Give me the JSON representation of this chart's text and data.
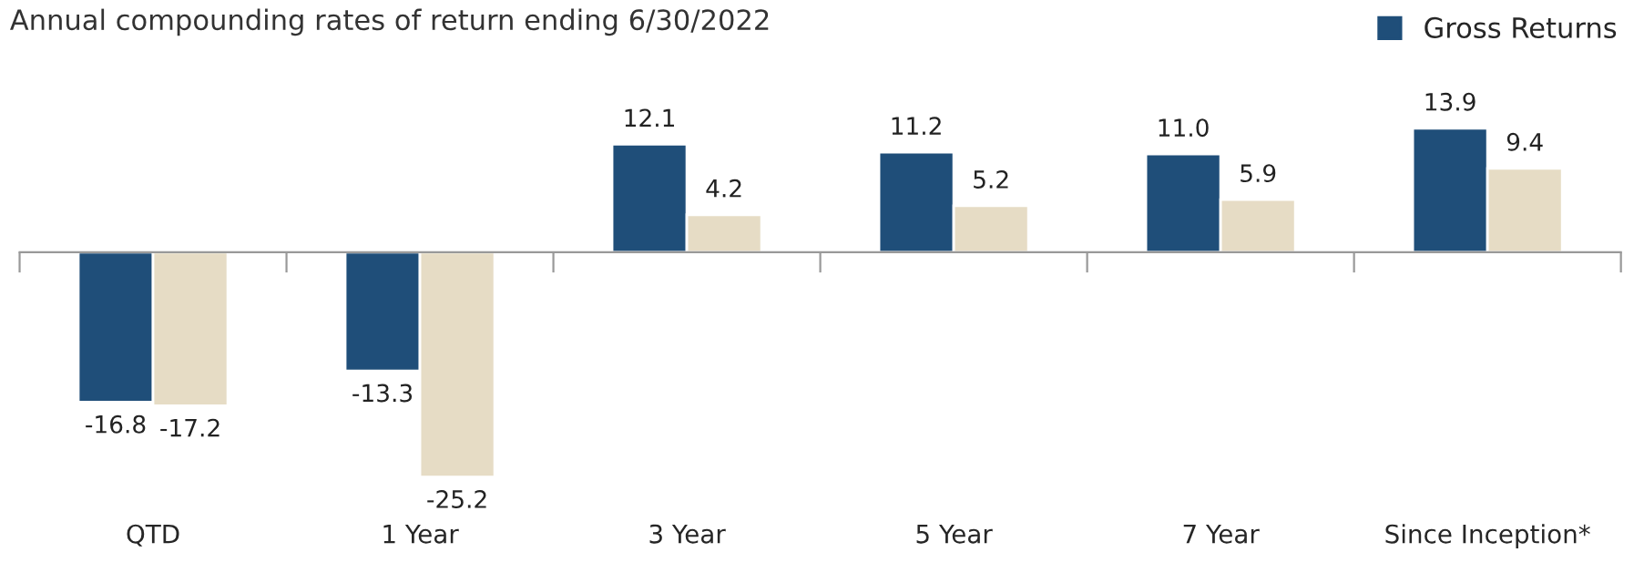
{
  "chart_data": {
    "type": "bar",
    "title": "Annual compounding rates of return ending 6/30/2022",
    "categories": [
      "QTD",
      "1 Year",
      "3 Year",
      "5 Year",
      "7 Year",
      "Since Inception*"
    ],
    "series": [
      {
        "name": "Gross Returns",
        "color": "#1f4e79",
        "values": [
          -16.8,
          -13.3,
          12.1,
          11.2,
          11.0,
          13.9
        ],
        "value_labels": [
          "-16.8",
          "-13.3",
          "12.1",
          "11.2",
          "11.0",
          "13.9"
        ]
      },
      {
        "color": "#e6dcc5",
        "values": [
          -17.2,
          -25.2,
          4.2,
          5.2,
          5.9,
          9.4
        ],
        "value_labels": [
          "-17.2",
          "-25.2",
          "4.2",
          "5.2",
          "5.9",
          "9.4"
        ]
      }
    ],
    "legend": "top right",
    "grid": false
  }
}
